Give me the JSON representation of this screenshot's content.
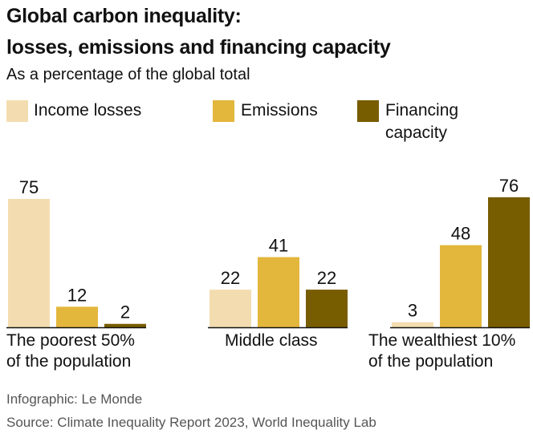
{
  "title_line1": "Global carbon inequality:",
  "title_line2": "losses, emissions and financing capacity",
  "subtitle": "As a percentage of the global total",
  "footer": {
    "credit": "Infographic: Le Monde",
    "source": "Source: Climate Inequality Report 2023, World Inequality Lab"
  },
  "chart_data": {
    "type": "bar",
    "categories": [
      "The poorest 50% of the population",
      "Middle class",
      "The wealthiest 10% of the population"
    ],
    "category_lines": [
      [
        "The poorest 50%",
        "of the population"
      ],
      [
        "Middle class"
      ],
      [
        "The wealthiest 10%",
        "of the population"
      ]
    ],
    "series": [
      {
        "name": "Income losses",
        "values": [
          75,
          22,
          3
        ],
        "color": "#f3ddb0"
      },
      {
        "name": "Emissions",
        "values": [
          12,
          41,
          48
        ],
        "color": "#e3b63c"
      },
      {
        "name": "Financing capacity",
        "values": [
          2,
          22,
          76
        ],
        "color": "#785c00"
      }
    ],
    "legend_lines": [
      [
        "Income losses"
      ],
      [
        "Emissions"
      ],
      [
        "Financing",
        "capacity"
      ]
    ],
    "ylim": [
      0,
      76
    ],
    "legend": "top",
    "grid": false
  }
}
